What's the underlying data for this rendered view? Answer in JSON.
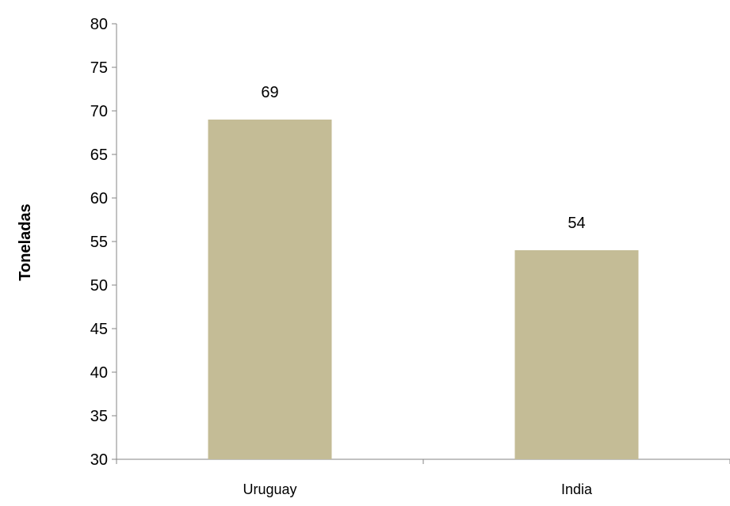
{
  "chart_data": {
    "type": "bar",
    "title": "",
    "xlabel": "",
    "ylabel": "Toneladas",
    "categories": [
      "Uruguay",
      "India"
    ],
    "values": [
      69,
      54
    ],
    "data_labels": [
      "69",
      "54"
    ],
    "ylim": [
      30,
      80
    ],
    "yticks": [
      30,
      35,
      40,
      45,
      50,
      55,
      60,
      65,
      70,
      75,
      80
    ],
    "grid": false,
    "legend": "none",
    "colors": {
      "bar": "#c4bc96",
      "axis": "#868686",
      "text": "#000000"
    }
  }
}
